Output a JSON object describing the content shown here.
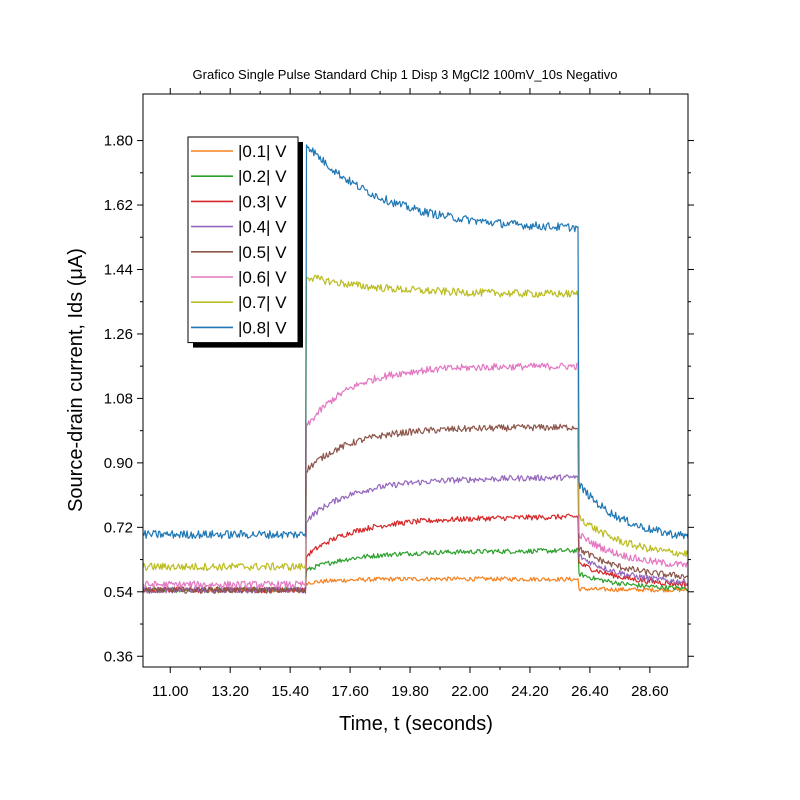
{
  "chart_data": {
    "type": "line",
    "title": "Grafico Single Pulse Standard Chip 1 Disp 3 MgCl2 100mV_10s Negativo",
    "xlabel": "Time, t (seconds)",
    "ylabel": "Source-drain current, Ids (μA)",
    "xlim": [
      10.0,
      30.0
    ],
    "ylim": [
      0.33,
      1.93
    ],
    "x_ticks": [
      11.0,
      13.2,
      15.4,
      17.6,
      19.8,
      22.0,
      24.2,
      26.4,
      28.6
    ],
    "x_tick_labels": [
      "11.00",
      "13.20",
      "15.40",
      "17.60",
      "19.80",
      "22.00",
      "24.20",
      "26.40",
      "28.60"
    ],
    "y_ticks": [
      0.36,
      0.54,
      0.72,
      0.9,
      1.08,
      1.26,
      1.44,
      1.62,
      1.8
    ],
    "y_tick_labels": [
      "0.36",
      "0.54",
      "0.72",
      "0.90",
      "1.08",
      "1.26",
      "1.44",
      "1.62",
      "1.80"
    ],
    "pulse_on": 16.0,
    "pulse_off": 26.0,
    "grid": false,
    "legend_position": "top-left",
    "series": [
      {
        "name": "|0.1| V",
        "color": "#f5811f",
        "base": 0.545,
        "start": 0.565,
        "plateau": 0.578,
        "peak_end": 0.575,
        "after": 0.548,
        "tail": 0.545
      },
      {
        "name": "|0.2| V",
        "color": "#2ca02c",
        "base": 0.545,
        "start": 0.6,
        "plateau": 0.65,
        "peak_end": 0.655,
        "after": 0.59,
        "tail": 0.545
      },
      {
        "name": "|0.3| V",
        "color": "#d62728",
        "base": 0.545,
        "start": 0.64,
        "plateau": 0.74,
        "peak_end": 0.75,
        "after": 0.62,
        "tail": 0.555
      },
      {
        "name": "|0.4| V",
        "color": "#9467bd",
        "base": 0.545,
        "start": 0.74,
        "plateau": 0.85,
        "peak_end": 0.86,
        "after": 0.64,
        "tail": 0.56
      },
      {
        "name": "|0.5| V",
        "color": "#8c564b",
        "base": 0.545,
        "start": 0.88,
        "plateau": 0.995,
        "peak_end": 1.0,
        "after": 0.66,
        "tail": 0.575
      },
      {
        "name": "|0.6| V",
        "color": "#e377c2",
        "base": 0.56,
        "start": 1.0,
        "plateau": 1.17,
        "peak_end": 1.17,
        "after": 0.7,
        "tail": 0.605
      },
      {
        "name": "|0.7| V",
        "color": "#bcbd22",
        "base": 0.61,
        "start": 1.42,
        "plateau": 1.37,
        "peak_end": 1.37,
        "after": 0.75,
        "tail": 0.635
      },
      {
        "name": "|0.8| V",
        "color": "#1f77b4",
        "base": 0.7,
        "start": 1.79,
        "plateau": 1.55,
        "peak_end": 1.55,
        "after": 0.84,
        "tail": 0.68
      }
    ]
  }
}
